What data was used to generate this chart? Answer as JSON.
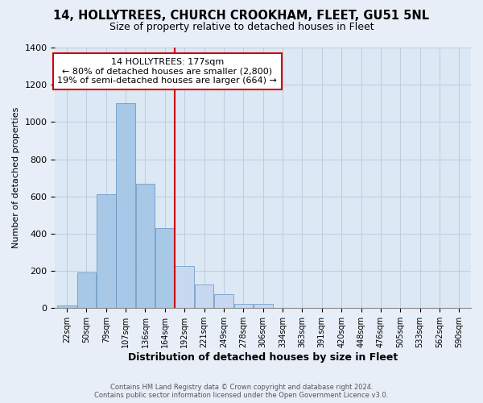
{
  "title_line1": "14, HOLLYTREES, CHURCH CROOKHAM, FLEET, GU51 5NL",
  "title_line2": "Size of property relative to detached houses in Fleet",
  "xlabel": "Distribution of detached houses by size in Fleet",
  "ylabel": "Number of detached properties",
  "bar_labels": [
    "22sqm",
    "50sqm",
    "79sqm",
    "107sqm",
    "136sqm",
    "164sqm",
    "192sqm",
    "221sqm",
    "249sqm",
    "278sqm",
    "306sqm",
    "334sqm",
    "363sqm",
    "391sqm",
    "420sqm",
    "448sqm",
    "476sqm",
    "505sqm",
    "533sqm",
    "562sqm",
    "590sqm"
  ],
  "bar_values": [
    15,
    190,
    610,
    1100,
    670,
    430,
    225,
    125,
    75,
    25,
    25,
    0,
    0,
    0,
    0,
    0,
    0,
    0,
    0,
    0,
    0
  ],
  "bar_color_left": "#a8c8e8",
  "bar_color_right": "#c8d8f0",
  "vline_index": 6,
  "vline_color": "#cc0000",
  "ylim": [
    0,
    1400
  ],
  "yticks": [
    0,
    200,
    400,
    600,
    800,
    1000,
    1200,
    1400
  ],
  "annotation_title": "14 HOLLYTREES: 177sqm",
  "annotation_line1": "← 80% of detached houses are smaller (2,800)",
  "annotation_line2": "19% of semi-detached houses are larger (664) →",
  "annotation_box_color": "#ffffff",
  "annotation_box_edge": "#cc0000",
  "footer_line1": "Contains HM Land Registry data © Crown copyright and database right 2024.",
  "footer_line2": "Contains public sector information licensed under the Open Government Licence v3.0.",
  "background_color": "#e8eef8",
  "plot_background_color": "#dce8f4",
  "grid_color": "#c0cce0",
  "bar_edge_color": "#6090c0"
}
